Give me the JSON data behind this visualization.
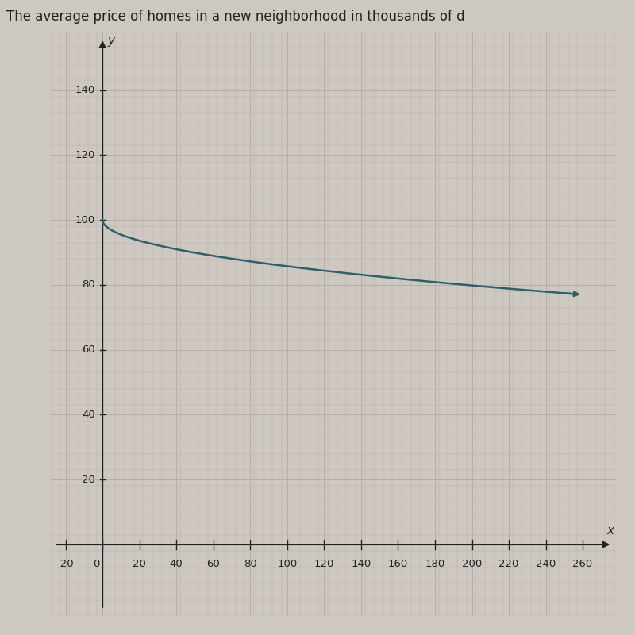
{
  "title": "The average price of homes in a new neighborhood in thousands of d",
  "title_fontsize": 12,
  "curve_color": "#2a6070",
  "curve_linewidth": 1.8,
  "bg_color": "#cdc8c0",
  "grid_color": "#b5afa8",
  "grid_linewidth": 0.6,
  "x_ticks": [
    -20,
    0,
    20,
    40,
    60,
    80,
    100,
    120,
    140,
    160,
    180,
    200,
    220,
    240,
    260
  ],
  "y_ticks": [
    20,
    40,
    60,
    80,
    100,
    120,
    140
  ],
  "xlim": [
    -28,
    278
  ],
  "ylim": [
    -22,
    158
  ],
  "x_origin": 0,
  "y_origin": 0,
  "axis_color": "#222222",
  "tick_fontsize": 9.5,
  "label_fontsize": 11,
  "curve_x_start": 0,
  "curve_x_end": 260,
  "curve_a": 100,
  "curve_k": 1.426,
  "arrow_ms": 6
}
